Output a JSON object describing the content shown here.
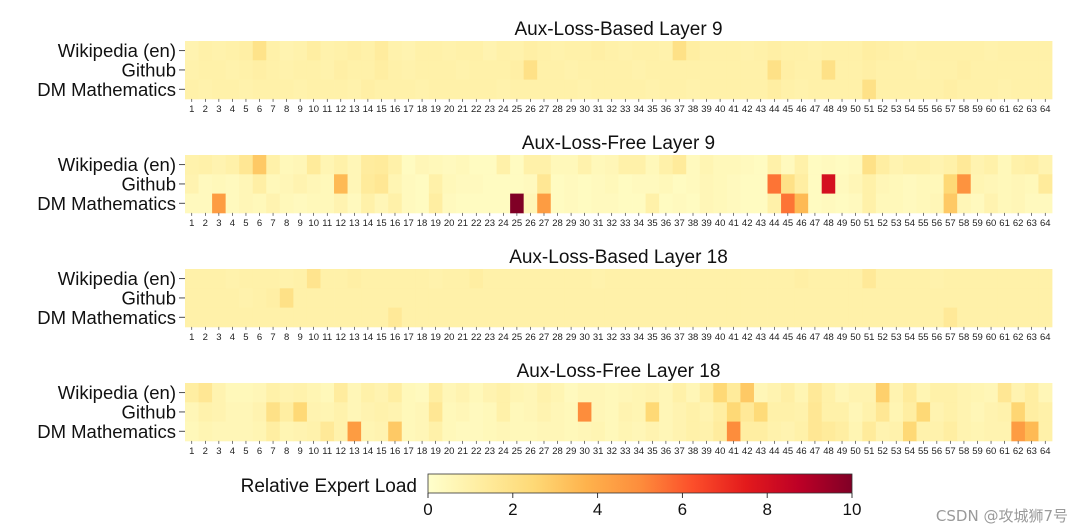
{
  "chart_data": {
    "type": "heatmap",
    "rows": [
      "Wikipedia (en)",
      "Github",
      "DM Mathematics"
    ],
    "experts": [
      1,
      2,
      3,
      4,
      5,
      6,
      7,
      8,
      9,
      10,
      11,
      12,
      13,
      14,
      15,
      16,
      17,
      18,
      19,
      20,
      21,
      22,
      23,
      24,
      25,
      26,
      27,
      28,
      29,
      30,
      31,
      32,
      33,
      34,
      35,
      36,
      37,
      38,
      39,
      40,
      41,
      42,
      43,
      44,
      45,
      46,
      47,
      48,
      49,
      50,
      51,
      52,
      53,
      54,
      55,
      56,
      57,
      58,
      59,
      60,
      61,
      62,
      63,
      64
    ],
    "value_range": [
      0,
      10
    ],
    "colormap": [
      "#ffffcc",
      "#ffeda0",
      "#fed976",
      "#feb24c",
      "#fd8d3c",
      "#fc4e2a",
      "#e31a1c",
      "#bd0026",
      "#800026"
    ],
    "panels": [
      {
        "title": "Aux-Loss-Based Layer 9",
        "values": [
          [
            0.8,
            1.0,
            0.9,
            1.0,
            1.1,
            1.9,
            1.0,
            0.8,
            0.9,
            1.2,
            0.9,
            1.0,
            1.1,
            1.0,
            1.3,
            0.9,
            0.8,
            1.0,
            1.0,
            0.9,
            1.0,
            1.0,
            0.8,
            1.0,
            0.9,
            1.1,
            1.0,
            0.9,
            1.0,
            1.0,
            1.1,
            1.0,
            0.9,
            1.0,
            1.0,
            0.9,
            2.0,
            1.2,
            1.0,
            1.0,
            1.0,
            0.9,
            1.0,
            1.1,
            1.0,
            1.0,
            0.9,
            1.0,
            1.0,
            1.0,
            1.2,
            1.1,
            1.0,
            0.9,
            1.0,
            1.0,
            1.0,
            1.0,
            1.0,
            0.9,
            1.0,
            1.0,
            1.0,
            1.0
          ],
          [
            0.9,
            1.0,
            1.0,
            0.9,
            1.0,
            1.1,
            1.0,
            0.9,
            1.0,
            1.0,
            0.9,
            1.1,
            1.0,
            1.0,
            1.2,
            1.0,
            0.9,
            1.0,
            1.0,
            1.0,
            0.9,
            1.0,
            1.0,
            1.0,
            1.1,
            2.0,
            1.0,
            1.0,
            0.9,
            1.0,
            1.0,
            1.0,
            1.0,
            0.9,
            1.0,
            1.0,
            1.0,
            1.0,
            1.0,
            1.0,
            1.0,
            1.0,
            1.0,
            2.0,
            1.1,
            1.0,
            1.0,
            2.0,
            1.0,
            1.0,
            1.1,
            1.0,
            1.0,
            1.0,
            0.9,
            1.0,
            1.0,
            1.1,
            1.0,
            1.0,
            1.0,
            1.0,
            1.0,
            1.0
          ],
          [
            1.0,
            0.9,
            1.0,
            1.0,
            0.9,
            1.0,
            1.0,
            1.0,
            0.9,
            1.0,
            1.0,
            1.0,
            0.9,
            1.1,
            1.0,
            1.0,
            1.0,
            0.9,
            1.0,
            1.0,
            1.0,
            1.0,
            1.0,
            0.9,
            1.0,
            1.0,
            1.0,
            1.0,
            1.0,
            0.9,
            1.0,
            1.0,
            1.0,
            1.0,
            0.9,
            1.0,
            1.0,
            0.9,
            1.0,
            1.0,
            1.0,
            1.0,
            1.0,
            1.2,
            1.0,
            0.9,
            1.0,
            1.0,
            1.0,
            1.0,
            2.0,
            1.0,
            1.0,
            1.0,
            1.0,
            1.0,
            1.1,
            1.0,
            1.0,
            1.0,
            0.9,
            1.0,
            1.0,
            1.0
          ]
        ]
      },
      {
        "title": "Aux-Loss-Free Layer 9",
        "values": [
          [
            0.9,
            1.0,
            0.8,
            1.0,
            1.6,
            3.0,
            1.0,
            0.5,
            0.6,
            1.4,
            0.7,
            1.0,
            0.6,
            1.3,
            1.4,
            1.0,
            0.3,
            0.6,
            0.5,
            0.4,
            0.5,
            0.3,
            0.3,
            1.0,
            0.3,
            1.0,
            1.0,
            0.5,
            0.5,
            0.9,
            0.5,
            0.6,
            1.0,
            1.0,
            0.5,
            1.0,
            1.4,
            0.4,
            0.7,
            0.5,
            0.5,
            0.4,
            0.3,
            1.0,
            0.4,
            1.0,
            0.3,
            0.4,
            0.3,
            0.4,
            2.0,
            1.2,
            0.8,
            1.0,
            1.0,
            0.8,
            1.0,
            1.5,
            0.8,
            1.0,
            0.5,
            1.0,
            1.1,
            0.8
          ],
          [
            0.8,
            0.4,
            0.5,
            0.4,
            0.6,
            1.1,
            0.5,
            0.6,
            0.8,
            0.6,
            0.5,
            3.5,
            0.6,
            1.4,
            1.6,
            0.7,
            0.4,
            0.3,
            1.0,
            0.5,
            0.4,
            0.4,
            0.3,
            0.3,
            0.3,
            0.4,
            1.6,
            0.3,
            0.4,
            0.3,
            0.4,
            0.5,
            0.3,
            0.4,
            0.4,
            0.5,
            0.3,
            0.4,
            0.6,
            0.5,
            0.4,
            0.3,
            0.3,
            5.5,
            2.0,
            1.2,
            0.3,
            8.0,
            0.4,
            0.6,
            1.0,
            0.6,
            0.5,
            0.4,
            0.5,
            0.5,
            2.5,
            4.8,
            0.7,
            0.6,
            0.5,
            0.6,
            0.5,
            1.4
          ],
          [
            0.4,
            0.4,
            4.5,
            0.4,
            0.6,
            0.5,
            0.8,
            0.5,
            0.4,
            0.5,
            0.5,
            0.8,
            0.4,
            1.0,
            0.6,
            1.0,
            0.4,
            0.3,
            1.2,
            0.4,
            0.3,
            0.3,
            0.3,
            0.3,
            10.0,
            0.6,
            4.5,
            0.3,
            0.4,
            0.3,
            0.4,
            0.4,
            0.3,
            0.3,
            1.0,
            0.3,
            0.4,
            0.3,
            0.6,
            0.5,
            0.4,
            0.3,
            0.3,
            1.0,
            5.5,
            3.5,
            0.3,
            0.4,
            0.3,
            0.4,
            1.0,
            0.5,
            0.5,
            0.4,
            0.5,
            0.6,
            3.0,
            0.6,
            0.4,
            0.8,
            0.5,
            0.6,
            0.4,
            0.4
          ]
        ]
      },
      {
        "title": "Aux-Loss-Based Layer 18",
        "values": [
          [
            1.0,
            1.0,
            1.0,
            0.9,
            1.0,
            1.0,
            1.0,
            0.9,
            1.0,
            1.8,
            1.0,
            1.0,
            1.1,
            1.0,
            1.0,
            1.0,
            1.0,
            1.0,
            0.9,
            1.0,
            1.0,
            1.2,
            1.0,
            1.0,
            1.0,
            1.0,
            1.0,
            1.0,
            1.0,
            1.0,
            0.9,
            1.0,
            1.0,
            1.0,
            1.0,
            1.0,
            1.0,
            1.0,
            1.0,
            1.0,
            1.0,
            1.0,
            1.0,
            1.0,
            1.0,
            1.1,
            1.0,
            1.0,
            1.0,
            1.0,
            1.5,
            1.0,
            1.0,
            1.0,
            1.0,
            0.9,
            1.0,
            1.0,
            1.0,
            1.0,
            1.0,
            1.0,
            1.0,
            1.0
          ],
          [
            1.0,
            1.0,
            1.0,
            1.0,
            0.9,
            1.0,
            1.1,
            2.0,
            1.0,
            1.0,
            1.0,
            1.0,
            1.0,
            1.0,
            1.0,
            1.0,
            1.0,
            1.0,
            1.0,
            1.0,
            1.0,
            1.0,
            1.0,
            1.0,
            1.0,
            1.0,
            1.0,
            1.0,
            1.0,
            1.0,
            1.0,
            1.0,
            1.0,
            1.0,
            1.0,
            1.0,
            1.0,
            1.0,
            1.0,
            1.0,
            1.0,
            1.0,
            1.0,
            1.0,
            1.0,
            1.0,
            1.0,
            1.0,
            1.0,
            1.0,
            1.0,
            1.0,
            1.0,
            1.0,
            1.0,
            1.0,
            1.0,
            1.0,
            1.0,
            1.0,
            1.0,
            1.0,
            1.0,
            1.0
          ],
          [
            1.0,
            1.0,
            1.0,
            1.0,
            1.0,
            1.0,
            1.0,
            1.0,
            1.0,
            1.0,
            1.0,
            1.0,
            1.0,
            1.0,
            1.0,
            1.5,
            1.0,
            1.0,
            1.0,
            1.0,
            1.0,
            1.0,
            1.0,
            1.0,
            1.0,
            1.0,
            1.0,
            1.0,
            1.0,
            1.0,
            1.0,
            1.0,
            1.0,
            1.0,
            1.0,
            1.0,
            1.0,
            1.0,
            1.0,
            1.0,
            1.0,
            1.0,
            1.0,
            1.0,
            1.0,
            1.0,
            1.0,
            1.0,
            1.0,
            1.0,
            1.0,
            1.0,
            1.0,
            1.0,
            1.0,
            1.0,
            1.5,
            1.0,
            1.0,
            1.0,
            1.0,
            1.0,
            1.0,
            1.0
          ]
        ]
      },
      {
        "title": "Aux-Loss-Free Layer 18",
        "values": [
          [
            1.2,
            1.6,
            0.8,
            0.5,
            0.5,
            0.6,
            1.0,
            0.8,
            0.9,
            0.7,
            0.5,
            1.3,
            0.6,
            1.0,
            0.8,
            1.2,
            0.5,
            0.4,
            1.2,
            0.6,
            0.8,
            0.5,
            0.8,
            1.0,
            0.7,
            0.6,
            0.9,
            0.7,
            0.4,
            0.6,
            0.6,
            0.5,
            0.6,
            0.7,
            0.8,
            0.6,
            1.0,
            0.6,
            1.2,
            2.5,
            1.4,
            3.0,
            0.6,
            0.8,
            1.1,
            0.7,
            1.5,
            1.0,
            0.6,
            0.8,
            0.8,
            2.8,
            0.8,
            1.4,
            0.7,
            1.0,
            1.0,
            0.8,
            0.7,
            0.6,
            1.6,
            0.8,
            1.2,
            0.6
          ],
          [
            0.6,
            0.9,
            0.8,
            0.6,
            0.6,
            0.8,
            2.0,
            1.2,
            2.5,
            0.8,
            0.7,
            0.9,
            0.6,
            0.8,
            0.9,
            0.8,
            0.5,
            0.6,
            1.6,
            0.5,
            0.6,
            0.4,
            0.5,
            1.0,
            0.5,
            0.6,
            0.8,
            0.6,
            0.5,
            5.0,
            0.6,
            0.5,
            0.8,
            0.7,
            2.5,
            0.6,
            0.8,
            1.0,
            0.8,
            1.2,
            2.5,
            1.5,
            2.4,
            1.0,
            1.0,
            0.9,
            1.6,
            1.0,
            1.0,
            0.6,
            0.9,
            1.6,
            0.7,
            1.2,
            2.5,
            0.8,
            1.0,
            0.8,
            0.6,
            0.8,
            0.9,
            2.6,
            1.2,
            1.0
          ],
          [
            0.5,
            0.7,
            0.6,
            0.6,
            0.6,
            0.7,
            1.2,
            0.7,
            0.8,
            0.9,
            1.5,
            0.9,
            4.5,
            0.7,
            0.8,
            3.0,
            0.5,
            0.6,
            1.0,
            0.5,
            0.4,
            0.4,
            0.5,
            0.6,
            0.5,
            0.5,
            0.6,
            0.6,
            0.5,
            0.6,
            0.7,
            0.5,
            0.7,
            0.6,
            0.8,
            0.6,
            0.8,
            1.0,
            0.9,
            1.3,
            5.0,
            1.2,
            1.2,
            0.9,
            0.8,
            1.0,
            1.6,
            1.4,
            1.2,
            0.7,
            1.4,
            0.8,
            0.9,
            2.5,
            0.9,
            0.9,
            1.2,
            0.8,
            0.7,
            0.8,
            0.8,
            4.5,
            3.5,
            1.0
          ]
        ]
      }
    ],
    "colorbar": {
      "label": "Relative Expert Load",
      "ticks": [
        0,
        2,
        4,
        6,
        8,
        10
      ]
    }
  },
  "watermark": "CSDN @攻城狮7号"
}
